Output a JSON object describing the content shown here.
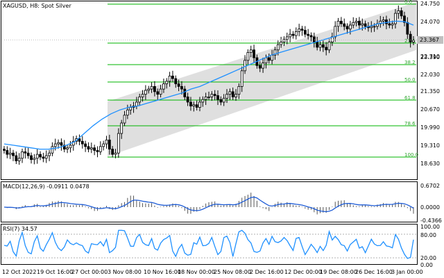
{
  "main_title": "XAGUSD, H8:  Spot Silver",
  "price_axis": [
    "24.750",
    "24.070",
    "23.390",
    "22.710",
    "22.030",
    "21.350",
    "20.670",
    "19.990",
    "19.310",
    "18.630"
  ],
  "current_price": "23.367",
  "fib_levels": [
    "0.0",
    "23.6",
    "38.2",
    "50.0",
    "61.8",
    "78.6",
    "100.0"
  ],
  "macd": {
    "title": "MACD(12,26,9) -0.0911 0.0478",
    "axis": [
      "0.6702",
      "0.0000",
      "-0.4366"
    ]
  },
  "rsi": {
    "title": "RSI(7) 34.57",
    "axis": [
      "100.00",
      "80.00",
      "20.00",
      "0.00"
    ]
  },
  "time_axis": [
    "12 Oct 2022",
    "19 Oct 16:00",
    "27 Oct 00:00",
    "3 Nov 08:00",
    "10 Nov 16:00",
    "18 Nov 00:00",
    "25 Nov 08:00",
    "2 Dec 16:00",
    "12 Dec 00:00",
    "19 Dec 08:00",
    "26 Dec 16:00",
    "3 Jan 00:00"
  ],
  "colors": {
    "bull": "#000000",
    "bear": "#000000",
    "ma": "#1e90ff",
    "fib": "#00b400",
    "channel": "#d8d8d8",
    "macd_signal": "#1e5cd6",
    "rsi": "#1e90ff"
  },
  "chart_data": {
    "type": "candlestick",
    "series": [
      {
        "name": "price_close",
        "values": [
          19.15,
          19.0,
          19.05,
          18.95,
          18.75,
          18.85,
          19.1,
          19.05,
          18.95,
          18.8,
          18.85,
          19.0,
          18.9,
          18.85,
          18.95,
          19.05,
          19.3,
          19.4,
          19.45,
          19.35,
          19.2,
          19.25,
          19.35,
          19.5,
          19.6,
          19.5,
          19.4,
          19.3,
          19.2,
          19.25,
          19.15,
          19.1,
          19.3,
          19.4,
          19.55,
          19.2,
          19.0,
          19.05,
          19.8,
          20.2,
          20.5,
          20.7,
          20.8,
          20.85,
          21.0,
          21.2,
          21.3,
          21.45,
          21.5,
          21.6,
          21.4,
          21.3,
          21.5,
          21.7,
          21.8,
          22.0,
          21.9,
          21.7,
          21.6,
          21.5,
          21.2,
          21.0,
          20.85,
          20.9,
          20.8,
          21.0,
          21.1,
          21.2,
          21.2,
          21.3,
          21.25,
          21.1,
          21.0,
          21.15,
          21.3,
          21.4,
          21.2,
          21.3,
          21.6,
          22.2,
          22.6,
          22.9,
          23.0,
          22.7,
          22.4,
          22.3,
          22.5,
          22.7,
          22.6,
          22.8,
          23.0,
          23.2,
          23.3,
          23.4,
          23.5,
          23.6,
          23.55,
          23.7,
          23.8,
          23.75,
          23.6,
          23.55,
          23.5,
          23.3,
          23.1,
          23.2,
          23.1,
          23.0,
          23.3,
          23.5,
          23.9,
          24.1,
          24.0,
          23.9,
          23.8,
          23.95,
          24.05,
          24.1,
          23.95,
          24.0,
          23.9,
          23.85,
          23.9,
          23.9,
          24.0,
          24.1,
          24.15,
          24.0,
          23.95,
          24.0,
          24.4,
          24.5,
          24.3,
          24.05,
          23.6,
          23.3,
          23.367
        ]
      },
      {
        "name": "MA",
        "values": [
          19.4,
          19.35,
          19.3,
          19.25,
          19.2,
          19.2,
          19.25,
          19.35,
          19.5,
          19.8,
          20.1,
          20.35,
          20.55,
          20.7,
          20.8,
          20.85,
          20.95,
          21.05,
          21.15,
          21.25,
          21.35,
          21.5,
          21.6,
          21.75,
          21.9,
          22.05,
          22.2,
          22.35,
          22.5,
          22.65,
          22.8,
          22.9,
          23.0,
          23.1,
          23.2,
          23.3,
          23.4,
          23.5,
          23.6,
          23.7,
          23.8,
          23.9,
          24.0,
          24.05,
          24.1,
          24.08,
          23.95
        ]
      }
    ]
  }
}
